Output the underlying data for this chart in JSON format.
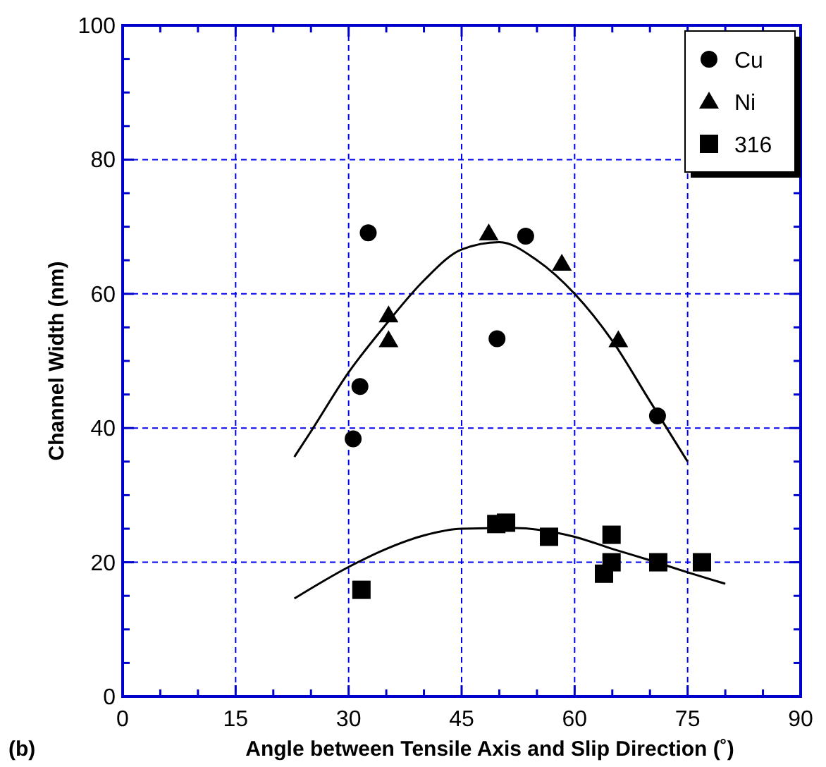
{
  "chart_data": {
    "type": "scatter",
    "xlabel": "Angle between Tensile Axis and Slip Direction (˚)",
    "ylabel": "Channel Width (nm)",
    "annotations": [
      "(b)"
    ],
    "xlim": [
      0,
      90
    ],
    "ylim": [
      0,
      100
    ],
    "xticks": [
      0,
      {
        "value": 5,
        "label": null
      },
      {
        "value": 10,
        "label": null
      },
      15,
      {
        "value": 20,
        "label": null
      },
      {
        "value": 25,
        "label": null
      },
      30,
      {
        "value": 35,
        "label": null
      },
      {
        "value": 40,
        "label": null
      },
      45,
      {
        "value": 50,
        "label": null
      },
      {
        "value": 55,
        "label": null
      },
      60,
      {
        "value": 65,
        "label": null
      },
      {
        "value": 70,
        "label": null
      },
      75,
      {
        "value": 80,
        "label": null
      },
      {
        "value": 85,
        "label": null
      },
      90
    ],
    "yticks": [
      0,
      {
        "value": 5,
        "label": null
      },
      {
        "value": 10,
        "label": null
      },
      {
        "value": 15,
        "label": null
      },
      20,
      {
        "value": 25,
        "label": null
      },
      {
        "value": 30,
        "label": null
      },
      {
        "value": 35,
        "label": null
      },
      40,
      {
        "value": 45,
        "label": null
      },
      {
        "value": 50,
        "label": null
      },
      {
        "value": 55,
        "label": null
      },
      60,
      {
        "value": 65,
        "label": null
      },
      {
        "value": 70,
        "label": null
      },
      {
        "value": 75,
        "label": null
      },
      80,
      {
        "value": 85,
        "label": null
      },
      {
        "value": 90,
        "label": null
      },
      {
        "value": 95,
        "label": null
      },
      100
    ],
    "grid": true,
    "legend": "top right",
    "series": [
      {
        "name": "Cu",
        "color": "#000000",
        "marker": "circle",
        "x": [
          30.6,
          31.5,
          32.6,
          49.7,
          53.5,
          71.0
        ],
        "values": [
          38.4,
          46.2,
          69.1,
          53.3,
          68.6,
          41.8
        ]
      },
      {
        "name": "Ni",
        "color": "#000000",
        "marker": "triangle",
        "x": [
          35.3,
          35.3,
          48.6,
          58.3,
          65.8
        ],
        "values": [
          56.8,
          53.1,
          69.0,
          64.5,
          53.1
        ]
      },
      {
        "name": "316",
        "color": "#000000",
        "marker": "square",
        "x": [
          31.7,
          49.6,
          50.9,
          56.6,
          63.9,
          64.9,
          64.9,
          71.1,
          76.9
        ],
        "values": [
          15.9,
          25.7,
          25.9,
          23.8,
          18.3,
          24.1,
          20.0,
          20.0,
          20.0
        ]
      },
      {
        "type": "line",
        "color": "#000000",
        "marker": "none",
        "x": [
          22.8,
          25,
          30,
          35,
          40,
          45,
          50,
          55,
          60,
          65,
          70,
          75
        ],
        "values": [
          35.7,
          39.5,
          48.3,
          55.5,
          62,
          66.6,
          67.7,
          65,
          60,
          53,
          44,
          35
        ]
      },
      {
        "type": "line",
        "color": "#000000",
        "marker": "none",
        "x": [
          22.8,
          30,
          35,
          40,
          45,
          52,
          60,
          65,
          70,
          75,
          80
        ],
        "values": [
          14.6,
          19.3,
          22,
          24,
          25,
          25.1,
          23.8,
          22,
          20.3,
          18.5,
          16.8
        ]
      }
    ]
  }
}
